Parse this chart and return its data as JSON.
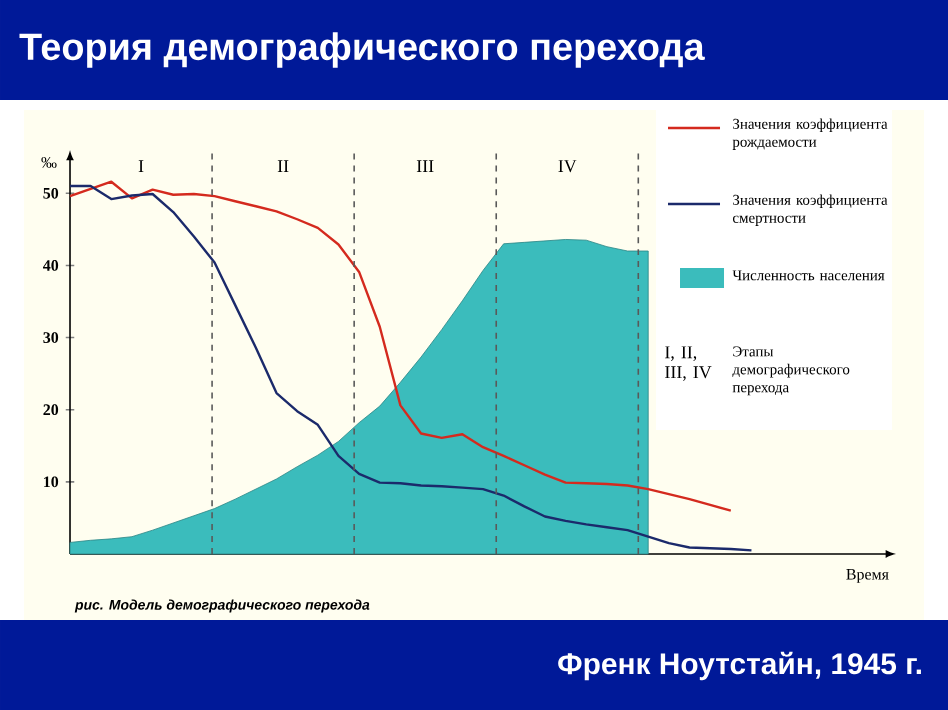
{
  "chart_data": {
    "type": "line",
    "title": "Теория демографического перехода",
    "xlabel": "Время",
    "ylabel": "‰",
    "categories": [
      null,
      null,
      null,
      null,
      null,
      null,
      null,
      null,
      null,
      null,
      null,
      null,
      null,
      null,
      null,
      null,
      null,
      null,
      null,
      null,
      null,
      null,
      null,
      null,
      null,
      null,
      null,
      null,
      null,
      null,
      null,
      null,
      null,
      null,
      null,
      null,
      null,
      null,
      null,
      null
    ],
    "ylim": [
      0,
      56
    ],
    "yticks": [
      10,
      20,
      30,
      40,
      50
    ],
    "legend": "top right",
    "marker": "none",
    "line_style": "solid",
    "series": [
      {
        "name": "Значения коэффициента рождаемости",
        "color": "#d42a1e",
        "values": [
          49.6,
          50.6,
          51.6,
          49.3,
          50.5,
          49.8,
          49.9,
          49.6,
          48.9,
          48.2,
          47.5,
          46.4,
          45.2,
          42.9,
          39.1,
          31.5,
          20.6,
          16.7,
          16.1,
          16.6,
          14.8,
          13.6,
          12.3,
          11,
          9.9,
          9.8,
          9.7,
          9.5,
          9,
          8.3,
          7.6,
          6.8,
          6,
          null,
          null,
          null,
          null,
          null,
          null,
          null
        ]
      },
      {
        "name": "Значения коэффициента смертности",
        "color": "#1b2a6b",
        "values": [
          51,
          51,
          49.2,
          49.7,
          49.9,
          47.4,
          44,
          40.4,
          34.5,
          28.6,
          22.3,
          19.8,
          17.9,
          13.6,
          11.1,
          9.9,
          9.8,
          9.5,
          9.4,
          9.2,
          9,
          8.1,
          6.6,
          5.2,
          4.6,
          4.1,
          3.7,
          3.3,
          2.4,
          1.5,
          0.9,
          0.8,
          0.7,
          0.5,
          null,
          null,
          null,
          null,
          null,
          null
        ]
      },
      {
        "name": "Численность населения",
        "type": "area",
        "color": "#3bbcbc",
        "values": [
          1.6,
          1.9,
          2.1,
          2.4,
          3.3,
          4.3,
          5.3,
          6.3,
          7.6,
          9,
          10.4,
          12.1,
          13.7,
          15.6,
          18.2,
          20.5,
          23.8,
          27.3,
          31.1,
          35.1,
          39.3,
          43,
          43.2,
          43.4,
          43.6,
          43.5,
          42.6,
          42,
          42,
          null,
          null,
          null,
          null,
          null,
          null,
          null,
          null,
          null,
          null,
          null
        ]
      }
    ],
    "annotations": [
      "рис. Модель демографического перехода",
      "Френк Ноутстайн, 1945 г.",
      "I, II, III, IV",
      "Этапы демографического перехода",
      "I",
      "II",
      "III",
      "IV"
    ]
  }
}
